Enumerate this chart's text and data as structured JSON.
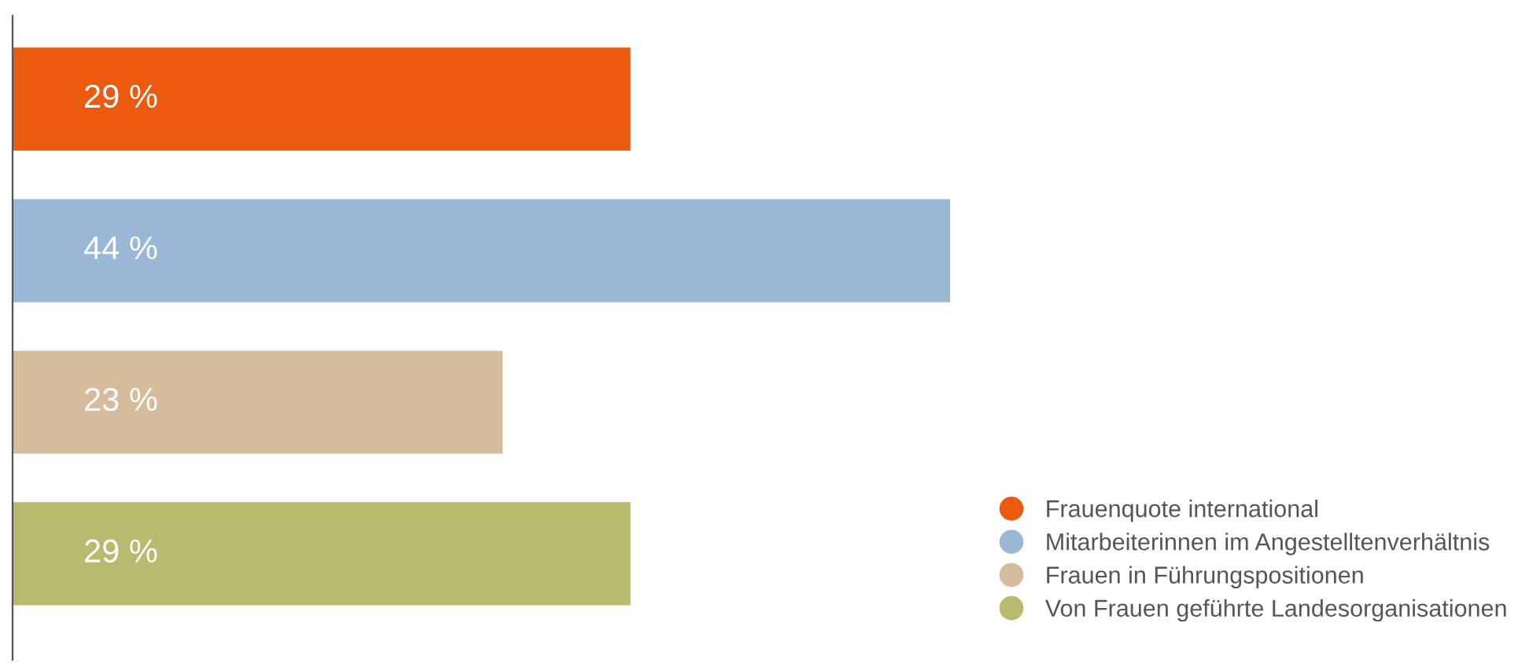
{
  "chart_data": {
    "type": "bar",
    "orientation": "horizontal",
    "stacked": true,
    "categories": [
      null,
      null,
      null,
      null
    ],
    "series": [
      {
        "name": "Frauenquote international",
        "color": "#eb5a0f",
        "values": [
          29,
          null,
          null,
          null
        ],
        "value_labels": [
          "29 %",
          null,
          null,
          null
        ]
      },
      {
        "name": "Mitarbeiterinnen im Angestelltenverhältnis",
        "color": "#9ab8d6",
        "values": [
          null,
          44,
          null,
          null
        ],
        "value_labels": [
          null,
          "44 %",
          null,
          null
        ]
      },
      {
        "name": "Frauen in Führungspositionen",
        "color": "#d6bc9c",
        "values": [
          null,
          null,
          23,
          null
        ],
        "value_labels": [
          null,
          null,
          "23 %",
          null
        ]
      },
      {
        "name": "Von Frauen geführte Landesorganisationen",
        "color": "#b8ba6e",
        "values": [
          null,
          null,
          null,
          29
        ],
        "value_labels": [
          null,
          null,
          null,
          "29 %"
        ]
      }
    ],
    "legend": "bottom right"
  }
}
